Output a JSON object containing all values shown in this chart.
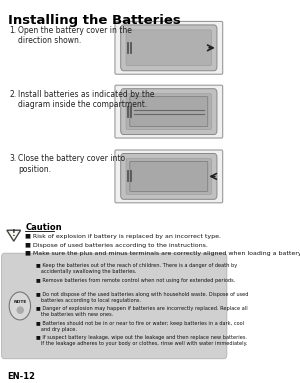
{
  "title": "Installing the Batteries",
  "bg_color": "#ffffff",
  "step1_num": "1.",
  "step1_text": "Open the battery cover in the\ndirection shown.",
  "step2_num": "2.",
  "step2_text": "Install batteries as indicated by the\ndiagram inside the compartment.",
  "step3_num": "3.",
  "step3_text": "Close the battery cover into\nposition.",
  "caution_title": "Caution",
  "caution_bullets": [
    "Risk of explosion if battery is replaced by an incorrect type.",
    "Dispose of used batteries according to the instructions.",
    "Make sure the plus and minus terminals are correctly aligned when loading a battery."
  ],
  "note_bullets": [
    "Keep the batteries out of the reach of children. There is a danger of death by\n   accidentally swallowing the batteries.",
    "Remove batteries from remote control when not using for extended periods.",
    "Do not dispose of the used batteries along with household waste. Dispose of used\n   batteries according to local regulations.",
    "Danger of explosion may happen if batteries are incorrectly replaced. Replace all\n   the batteries with new ones.",
    "Batteries should not be in or near to fire or water; keep batteries in a dark, cool\n   and dry place.",
    "If suspect battery leakage, wipe out the leakage and then replace new batteries.\n   If the leakage adheres to your body or clothes, rinse well with water immediately."
  ],
  "footer": "EN-12",
  "note_bg": "#d0d0d0",
  "box_border": "#aaaaaa"
}
